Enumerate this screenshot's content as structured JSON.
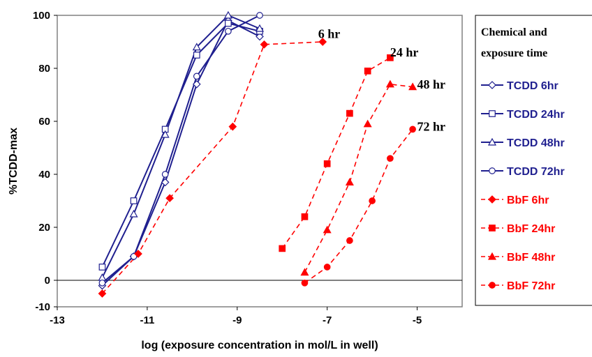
{
  "chart_data": {
    "type": "line",
    "xlabel": "log (exposure concentration in mol/L in well)",
    "ylabel": "%TCDD-max",
    "xlim": [
      -13,
      -4
    ],
    "ylim": [
      -10,
      100
    ],
    "xticks": [
      -13,
      -11,
      -9,
      -7,
      -5
    ],
    "xtick_labels": [
      "-13",
      "-11",
      "-9",
      "-7",
      "-5"
    ],
    "yticks": [
      -10,
      0,
      20,
      40,
      60,
      80,
      100
    ],
    "ytick_labels": [
      "-10",
      "0",
      "20",
      "40",
      "60",
      "80",
      "100"
    ],
    "grid": false,
    "legend": {
      "title": [
        "Chemical and",
        "exposure time"
      ],
      "placement": "right"
    },
    "series": [
      {
        "name": "TCDD 6hr",
        "color": "#1f1f8f",
        "marker": "diamond",
        "dashed": false,
        "x": [
          -12.0,
          -11.3,
          -10.6,
          -9.9,
          -9.2,
          -8.5
        ],
        "y": [
          -2,
          9,
          37,
          74,
          98,
          92
        ]
      },
      {
        "name": "TCDD 24hr",
        "color": "#1f1f8f",
        "marker": "square",
        "dashed": false,
        "x": [
          -12.0,
          -11.3,
          -10.6,
          -9.9,
          -9.2,
          -8.5
        ],
        "y": [
          5,
          30,
          57,
          85,
          97,
          94
        ]
      },
      {
        "name": "TCDD 48hr",
        "color": "#1f1f8f",
        "marker": "triangle",
        "dashed": false,
        "x": [
          -12.0,
          -11.3,
          -10.6,
          -9.9,
          -9.2,
          -8.5
        ],
        "y": [
          1,
          25,
          55,
          88,
          100,
          95
        ]
      },
      {
        "name": "TCDD 72hr",
        "color": "#1f1f8f",
        "marker": "circle",
        "dashed": false,
        "x": [
          -12.0,
          -11.3,
          -10.6,
          -9.9,
          -9.2,
          -8.5
        ],
        "y": [
          -1,
          9,
          40,
          77,
          94,
          100
        ]
      },
      {
        "name": "BbF 6hr",
        "color": "#ff0000",
        "marker": "diamond",
        "dashed": true,
        "x": [
          -12.0,
          -11.2,
          -10.5,
          -9.1,
          -8.4,
          -7.1
        ],
        "y": [
          -5,
          10,
          31,
          58,
          89,
          90
        ]
      },
      {
        "name": "BbF 24hr",
        "color": "#ff0000",
        "marker": "square",
        "dashed": true,
        "x": [
          -8.0,
          -7.5,
          -7.0,
          -6.5,
          -6.1,
          -5.6
        ],
        "y": [
          12,
          24,
          44,
          63,
          79,
          84
        ]
      },
      {
        "name": "BbF 48hr",
        "color": "#ff0000",
        "marker": "triangle",
        "dashed": true,
        "x": [
          -7.5,
          -7.0,
          -6.5,
          -6.1,
          -5.6,
          -5.1
        ],
        "y": [
          3,
          19,
          37,
          59,
          74,
          73
        ]
      },
      {
        "name": "BbF 72hr",
        "color": "#ff0000",
        "marker": "circle",
        "dashed": true,
        "x": [
          -7.5,
          -7.0,
          -6.5,
          -6.0,
          -5.6,
          -5.1
        ],
        "y": [
          -1,
          5,
          15,
          30,
          46,
          57
        ]
      }
    ],
    "annotations": [
      {
        "text": "6 hr",
        "x": -7.2,
        "y": 93
      },
      {
        "text": "24 hr",
        "x": -5.6,
        "y": 86
      },
      {
        "text": "48 hr",
        "x": -5.0,
        "y": 74
      },
      {
        "text": "72 hr",
        "x": -5.0,
        "y": 58
      }
    ]
  }
}
